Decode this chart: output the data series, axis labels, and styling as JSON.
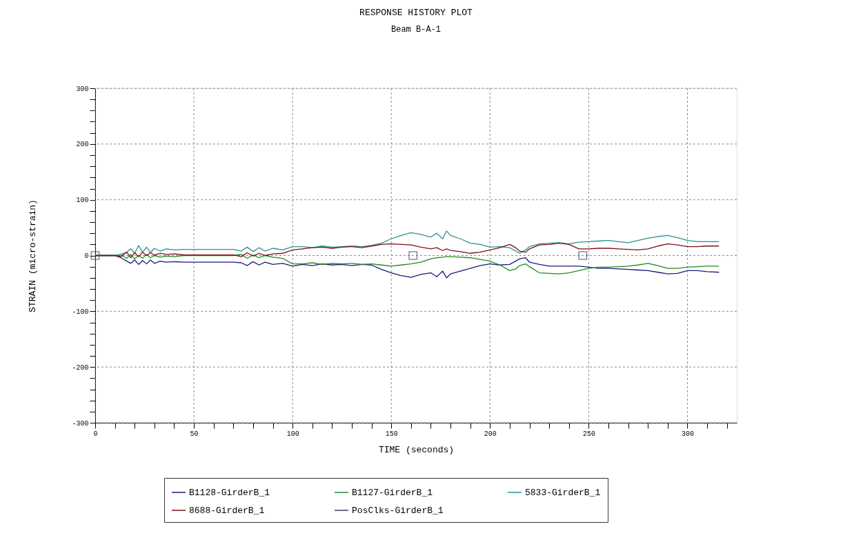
{
  "chart_data": {
    "type": "line",
    "title": "RESPONSE HISTORY PLOT",
    "subtitle": "Beam B-A-1",
    "xlabel": "TIME (seconds)",
    "ylabel": "STRAIN (micro-strain)",
    "x": [
      0,
      5,
      10,
      13,
      16,
      18,
      20,
      22,
      24,
      26,
      28,
      30,
      33,
      36,
      40,
      45,
      50,
      60,
      70,
      74,
      77,
      80,
      83,
      86,
      90,
      95,
      100,
      105,
      110,
      115,
      120,
      125,
      130,
      135,
      140,
      145,
      150,
      155,
      160,
      165,
      170,
      173,
      176,
      178,
      180,
      185,
      190,
      195,
      200,
      205,
      210,
      213,
      215,
      218,
      220,
      225,
      230,
      235,
      240,
      245,
      250,
      255,
      260,
      265,
      270,
      275,
      280,
      285,
      290,
      295,
      300,
      305,
      310,
      316
    ],
    "series": [
      {
        "name": "B1128-GirderB_1",
        "color": "#1a1a7a",
        "values": [
          0,
          0,
          0,
          -4,
          -10,
          -14,
          -8,
          -16,
          -9,
          -15,
          -8,
          -14,
          -10,
          -12,
          -11,
          -12,
          -12,
          -12,
          -12,
          -13,
          -18,
          -11,
          -17,
          -12,
          -16,
          -14,
          -19,
          -16,
          -18,
          -15,
          -17,
          -16,
          -18,
          -16,
          -17,
          -25,
          -31,
          -36,
          -39,
          -34,
          -31,
          -38,
          -28,
          -40,
          -33,
          -28,
          -23,
          -18,
          -15,
          -17,
          -16,
          -10,
          -6,
          -4,
          -12,
          -16,
          -19,
          -19,
          -19,
          -19,
          -21,
          -23,
          -23,
          -24,
          -25,
          -26,
          -27,
          -30,
          -33,
          -32,
          -27,
          -27,
          -29,
          -30
        ]
      },
      {
        "name": "B1127-GirderB_1",
        "color": "#1f8a1f",
        "values": [
          0,
          0,
          0,
          1,
          -5,
          2,
          -6,
          0,
          -5,
          2,
          -4,
          0,
          -3,
          -1,
          -2,
          0,
          0,
          0,
          0,
          2,
          -5,
          1,
          -4,
          0,
          -3,
          -5,
          -15,
          -15,
          -13,
          -16,
          -14,
          -15,
          -14,
          -16,
          -15,
          -17,
          -19,
          -17,
          -15,
          -12,
          -6,
          -4,
          -3,
          -2,
          -2,
          -3,
          -4,
          -7,
          -10,
          -17,
          -27,
          -24,
          -18,
          -15,
          -20,
          -31,
          -32,
          -33,
          -31,
          -27,
          -23,
          -21,
          -21,
          -20,
          -19,
          -17,
          -14,
          -18,
          -23,
          -23,
          -21,
          -20,
          -19,
          -19
        ]
      },
      {
        "name": "5833-GirderB_1",
        "color": "#2a9090",
        "values": [
          0,
          0,
          0,
          2,
          6,
          12,
          4,
          18,
          6,
          15,
          5,
          13,
          8,
          12,
          10,
          11,
          11,
          11,
          11,
          8,
          15,
          7,
          14,
          8,
          13,
          10,
          16,
          16,
          14,
          17,
          15,
          16,
          17,
          16,
          18,
          22,
          30,
          36,
          41,
          38,
          33,
          40,
          30,
          44,
          36,
          30,
          22,
          20,
          15,
          16,
          14,
          8,
          4,
          10,
          16,
          21,
          22,
          23,
          21,
          24,
          25,
          26,
          27,
          25,
          23,
          27,
          31,
          34,
          36,
          32,
          27,
          25,
          25,
          25
        ]
      },
      {
        "name": "8688-GirderB_1",
        "color": "#7a1010",
        "values": [
          0,
          0,
          0,
          -2,
          6,
          -4,
          5,
          -2,
          6,
          0,
          5,
          1,
          4,
          2,
          3,
          1,
          1,
          1,
          1,
          -2,
          5,
          -1,
          4,
          0,
          3,
          4,
          10,
          12,
          14,
          15,
          13,
          15,
          16,
          14,
          17,
          20,
          21,
          20,
          19,
          15,
          12,
          14,
          9,
          12,
          9,
          7,
          4,
          6,
          10,
          14,
          20,
          14,
          8,
          6,
          12,
          19,
          20,
          22,
          20,
          12,
          12,
          13,
          13,
          12,
          11,
          10,
          12,
          17,
          21,
          19,
          16,
          16,
          17,
          17
        ]
      },
      {
        "name": "PosClks-GirderB_1",
        "color": "#3b3b7a",
        "type": "scatter",
        "marker": "square",
        "x": [
          0,
          161,
          247
        ],
        "values": [
          0,
          0,
          0
        ]
      }
    ],
    "xlim": [
      0,
      325
    ],
    "ylim": [
      -300,
      300
    ],
    "xticks": [
      0,
      {
        "value": 10,
        "label": null
      },
      {
        "value": 20,
        "label": null
      },
      {
        "value": 30,
        "label": null
      },
      {
        "value": 40,
        "label": null
      },
      50,
      {
        "value": 60,
        "label": null
      },
      {
        "value": 70,
        "label": null
      },
      {
        "value": 80,
        "label": null
      },
      {
        "value": 90,
        "label": null
      },
      100,
      {
        "value": 110,
        "label": null
      },
      {
        "value": 120,
        "label": null
      },
      {
        "value": 130,
        "label": null
      },
      {
        "value": 140,
        "label": null
      },
      150,
      {
        "value": 160,
        "label": null
      },
      {
        "value": 170,
        "label": null
      },
      {
        "value": 180,
        "label": null
      },
      {
        "value": 190,
        "label": null
      },
      200,
      {
        "value": 210,
        "label": null
      },
      {
        "value": 220,
        "label": null
      },
      {
        "value": 230,
        "label": null
      },
      {
        "value": 240,
        "label": null
      },
      250,
      {
        "value": 260,
        "label": null
      },
      {
        "value": 270,
        "label": null
      },
      {
        "value": 280,
        "label": null
      },
      {
        "value": 290,
        "label": null
      },
      300,
      {
        "value": 310,
        "label": null
      },
      {
        "value": 320,
        "label": null
      }
    ],
    "yticks": [
      -300,
      {
        "value": -280,
        "label": null
      },
      {
        "value": -260,
        "label": null
      },
      {
        "value": -240,
        "label": null
      },
      {
        "value": -220,
        "label": null
      },
      -200,
      {
        "value": -180,
        "label": null
      },
      {
        "value": -160,
        "label": null
      },
      {
        "value": -140,
        "label": null
      },
      {
        "value": -120,
        "label": null
      },
      -100,
      {
        "value": -80,
        "label": null
      },
      {
        "value": -60,
        "label": null
      },
      {
        "value": -40,
        "label": null
      },
      {
        "value": -20,
        "label": null
      },
      0,
      {
        "value": 20,
        "label": null
      },
      {
        "value": 40,
        "label": null
      },
      {
        "value": 60,
        "label": null
      },
      {
        "value": 80,
        "label": null
      },
      100,
      {
        "value": 120,
        "label": null
      },
      {
        "value": 140,
        "label": null
      },
      {
        "value": 160,
        "label": null
      },
      {
        "value": 180,
        "label": null
      },
      200,
      {
        "value": 220,
        "label": null
      },
      {
        "value": 240,
        "label": null
      },
      {
        "value": 260,
        "label": null
      },
      {
        "value": 280,
        "label": null
      },
      300
    ],
    "grid": true,
    "legend": "bottom"
  }
}
